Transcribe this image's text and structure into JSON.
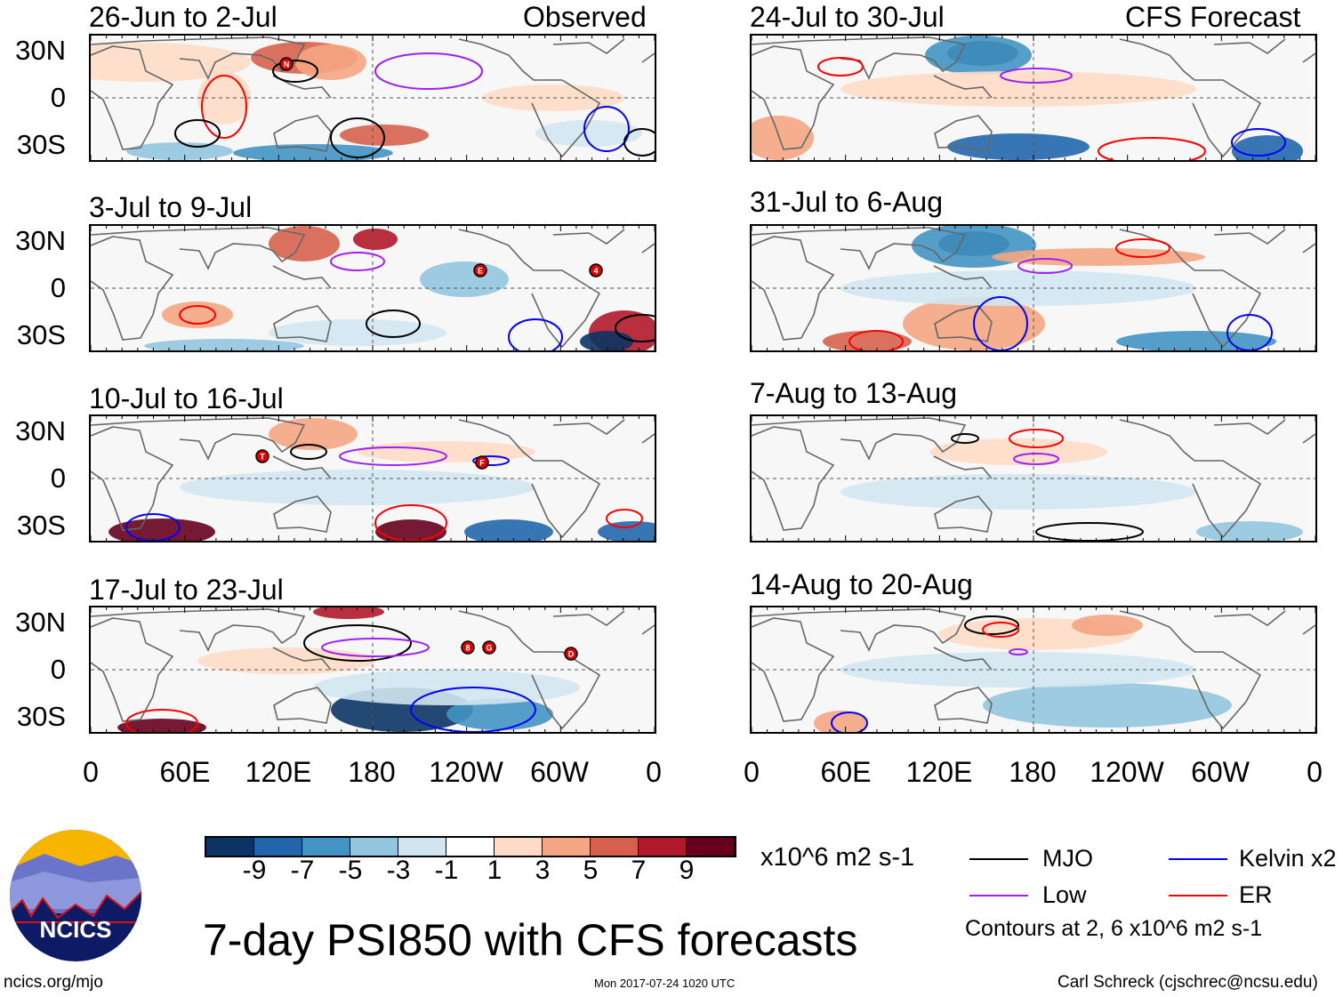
{
  "header": {
    "observed_label": "Observed",
    "forecast_label": "CFS Forecast"
  },
  "panels": [
    {
      "title": "26-Jun to 2-Jul",
      "storms": [
        "N"
      ]
    },
    {
      "title": "3-Jul to 9-Jul",
      "storms": [
        "E",
        "4"
      ]
    },
    {
      "title": "10-Jul to 16-Jul",
      "storms": [
        "T",
        "F"
      ]
    },
    {
      "title": "17-Jul to 23-Jul",
      "storms": [
        "8",
        "G",
        "D"
      ]
    },
    {
      "title": "24-Jul to 30-Jul",
      "storms": []
    },
    {
      "title": "31-Jul to 6-Aug",
      "storms": []
    },
    {
      "title": "7-Aug to 13-Aug",
      "storms": []
    },
    {
      "title": "14-Aug to 20-Aug",
      "storms": []
    }
  ],
  "lat_labels": [
    "30N",
    "0",
    "30S"
  ],
  "lon_labels": [
    "0",
    "60E",
    "120E",
    "180",
    "120W",
    "60W",
    "0"
  ],
  "colorbar": {
    "labels": [
      "-9",
      "-7",
      "-5",
      "-3",
      "-1",
      "1",
      "3",
      "5",
      "7",
      "9"
    ],
    "colors": [
      "#0b3464",
      "#2166ac",
      "#4393c3",
      "#92c5de",
      "#d1e5f0",
      "#ffffff",
      "#fddbc7",
      "#f4a582",
      "#d6604d",
      "#b2182b",
      "#67001f"
    ],
    "units": "x10^6 m2 s-1"
  },
  "legend": {
    "items": [
      {
        "label": "MJO",
        "color": "#000000"
      },
      {
        "label": "Kelvin x2",
        "color": "#0000ff"
      },
      {
        "label": "Low",
        "color": "#a020f0"
      },
      {
        "label": "ER",
        "color": "#ff0000"
      }
    ],
    "note": "Contours at 2, 6 x10^6 m2 s-1"
  },
  "title": "7-day PSI850 with CFS forecasts",
  "logo_text": "NCICS",
  "footer": {
    "url": "ncics.org/mjo",
    "timestamp": "Mon 2017-07-24 1020 UTC",
    "author": "Carl Schreck (cjschrec@ncsu.edu)"
  }
}
